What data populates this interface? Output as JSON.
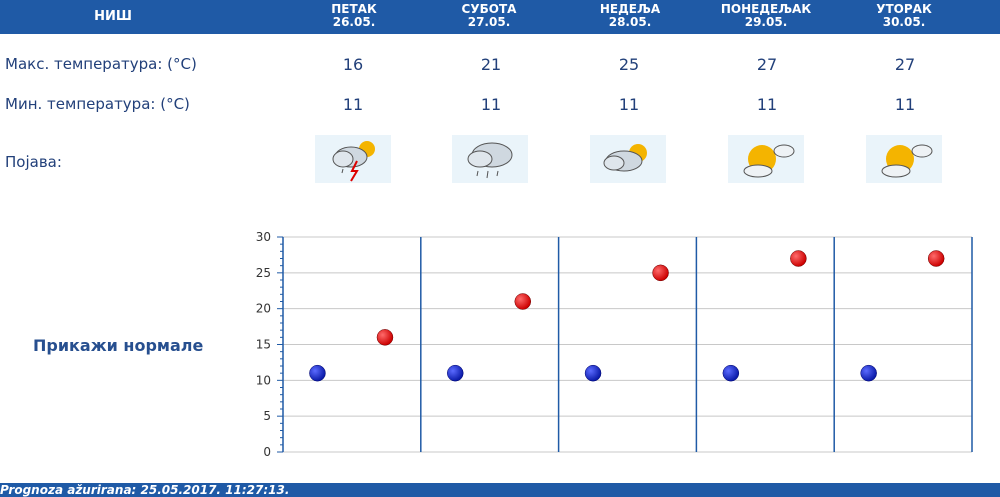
{
  "header": {
    "city": "НИШ",
    "days": [
      {
        "name": "ПЕТАК",
        "date": "26.05."
      },
      {
        "name": "СУБОТА",
        "date": "27.05."
      },
      {
        "name": "НЕДЕЉА",
        "date": "28.05."
      },
      {
        "name": "ПОНЕДЕЉАК",
        "date": "29.05."
      },
      {
        "name": "УТОРАК",
        "date": "30.05."
      }
    ]
  },
  "rows": {
    "max_label": "Макс. температура: (°C)",
    "min_label": "Мин. температура: (°C)",
    "phenomenon_label": "Појава:",
    "max_values": [
      "16",
      "21",
      "25",
      "27",
      "27"
    ],
    "min_values": [
      "11",
      "11",
      "11",
      "11",
      "11"
    ],
    "icons": [
      "thunderstorm-icon",
      "rain-icon",
      "cloudy-sun-icon",
      "partly-sunny-icon",
      "partly-sunny-icon"
    ]
  },
  "show_normals": "Прикажи нормале",
  "footer": "Prognoza ažurirana:  25.05.2017.  11:27:13.",
  "colors": {
    "header": "#1f5aa6",
    "max_point": "#cc0000",
    "min_point": "#0a1aa8"
  },
  "chart_data": {
    "type": "scatter",
    "categories": [
      "26.05.",
      "27.05.",
      "28.05.",
      "29.05.",
      "30.05."
    ],
    "series": [
      {
        "values": [
          11,
          11,
          11,
          11,
          11
        ],
        "color": "#0a1aa8"
      },
      {
        "values": [
          16,
          21,
          25,
          27,
          27
        ],
        "color": "#cc0000"
      }
    ],
    "ylim": [
      0,
      30
    ],
    "yticks": [
      "0",
      "5",
      "10",
      "15",
      "20",
      "25",
      "30"
    ],
    "grid": true
  }
}
